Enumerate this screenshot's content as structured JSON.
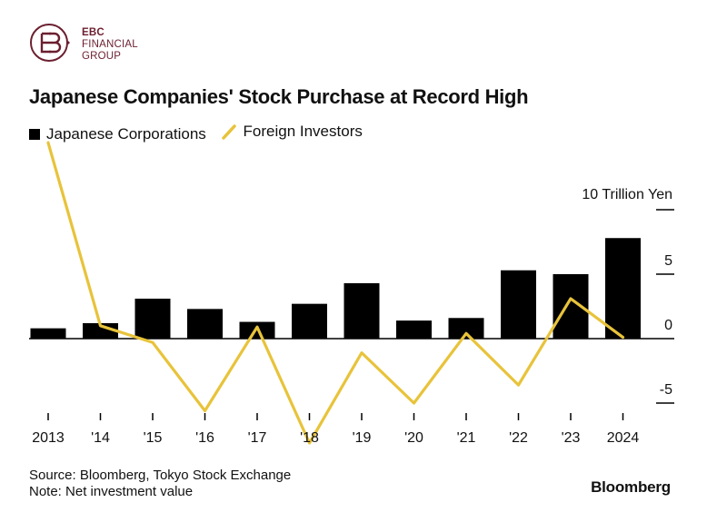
{
  "logo": {
    "line1": "EBC",
    "line2": "FINANCIAL",
    "line3": "GROUP",
    "letters": "EB",
    "color": "#6b1f2f"
  },
  "chart_data": {
    "type": "bar+line",
    "title": "Japanese Companies' Stock Purchase at Record High",
    "unit_label": "10 Trillion Yen",
    "categories": [
      "2013",
      "'14",
      "'15",
      "'16",
      "'17",
      "'18",
      "'19",
      "'20",
      "'21",
      "'22",
      "'23",
      "2024"
    ],
    "series": [
      {
        "name": "Japanese Corporations",
        "type": "bar",
        "color": "#000000",
        "values": [
          0.8,
          1.2,
          3.1,
          2.3,
          1.3,
          2.7,
          4.3,
          1.4,
          1.6,
          5.3,
          5.0,
          7.8
        ]
      },
      {
        "name": "Foreign Investors",
        "type": "line",
        "color": "#e8c33a",
        "values": [
          15.2,
          1.0,
          -0.3,
          -5.6,
          0.9,
          -8.1,
          -1.1,
          -5.0,
          0.4,
          -3.6,
          3.1,
          0.1
        ]
      }
    ],
    "y_ticks": [
      10,
      5,
      0,
      -5
    ],
    "y_tick_labels": [
      "",
      "5",
      "0",
      "-5"
    ],
    "ylim": [
      -6.2,
      15.8
    ]
  },
  "footer": {
    "source": "Source: Bloomberg, Tokyo Stock Exchange",
    "note": "Note: Net investment value"
  },
  "brand": "Bloomberg"
}
